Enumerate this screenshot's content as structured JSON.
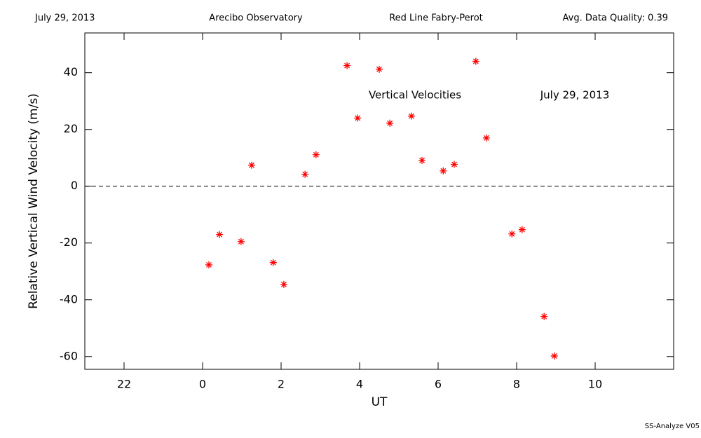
{
  "chart_data": {
    "type": "scatter",
    "header": [
      "July 29, 2013",
      "Arecibo Observatory",
      "Red Line Fabry-Perot",
      "Avg. Data Quality: 0.39"
    ],
    "annotations": [
      "Vertical Velocities",
      "July 29, 2013"
    ],
    "footer": "SS-Analyze V05",
    "xlabel": "UT",
    "ylabel": "Relative Vertical Wind Velocity (m/s)",
    "xlim": [
      -3,
      12
    ],
    "xticks": [
      {
        "value": -2,
        "label": "22"
      },
      0,
      2,
      4,
      6,
      8,
      10
    ],
    "ylim": [
      -64.5,
      54
    ],
    "yticks": [
      -60,
      -40,
      -20,
      0,
      20,
      40
    ],
    "reference_line": 0,
    "color": "#ff0000",
    "x": [
      0.16,
      0.43,
      0.98,
      1.25,
      1.8,
      2.07,
      2.61,
      2.89,
      3.68,
      3.95,
      4.5,
      4.77,
      5.32,
      5.59,
      6.13,
      6.41,
      6.96,
      7.23,
      7.88,
      8.14,
      8.7,
      8.96
    ],
    "values": [
      -27.7,
      -17.0,
      -19.5,
      7.4,
      -26.9,
      -34.6,
      4.2,
      11.1,
      42.5,
      24.0,
      41.2,
      22.2,
      24.7,
      9.1,
      5.4,
      7.7,
      44.0,
      17.0,
      -16.8,
      -15.3,
      -45.9,
      -59.8
    ]
  }
}
